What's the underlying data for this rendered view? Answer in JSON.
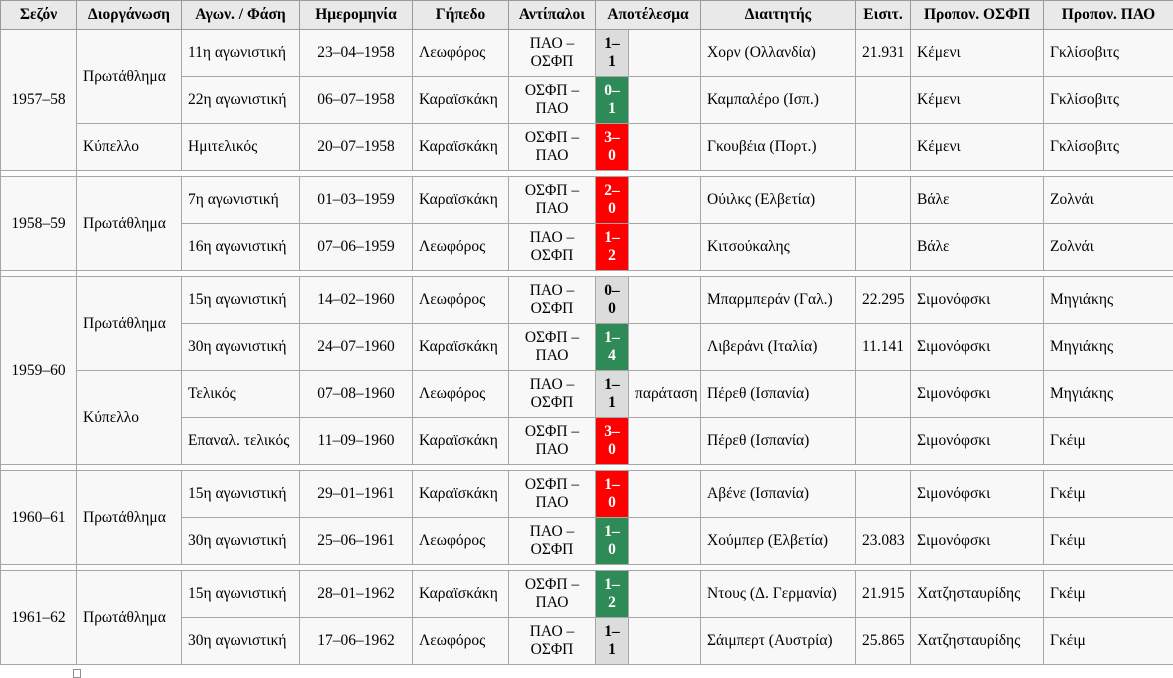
{
  "table": {
    "headers": [
      "Σεζόν",
      "Διοργάνωση",
      "Αγων. / Φάση",
      "Ημερομηνία",
      "Γήπεδο",
      "Αντίπαλοι",
      "Αποτέλεσμα",
      "Διαιτητής",
      "Εισιτ.",
      "Προπον. ΟΣΦΠ",
      "Προπον. ΠΑΟ"
    ],
    "result_colors": {
      "pao_win": "#2E8B57",
      "osfp_win": "#FF0000",
      "draw": "#DCDCDC"
    },
    "sections": [
      {
        "season": "1957–58",
        "competitions": [
          {
            "name": "Πρωτάθλημα",
            "matches": [
              {
                "phase": "11η αγωνιστική",
                "date": "23–04–1958",
                "stadium": "Λεωφόρος",
                "opponents": "ΠΑΟ – ΟΣΦΠ",
                "score": "1–1",
                "result": "draw",
                "note": "",
                "referee": "Χορν (Ολλανδία)",
                "tickets": "21.931",
                "coach_osfp": "Κέμενι",
                "coach_pao": "Γκλίσοβιτς"
              },
              {
                "phase": "22η αγωνιστική",
                "date": "06–07–1958",
                "stadium": "Καραϊσκάκη",
                "opponents": "ΟΣΦΠ – ΠΑΟ",
                "score": "0–1",
                "result": "pao_win",
                "note": "",
                "referee": "Καμπαλέρο (Ισπ.)",
                "tickets": "",
                "coach_osfp": "Κέμενι",
                "coach_pao": "Γκλίσοβιτς"
              }
            ]
          },
          {
            "name": "Κύπελλο",
            "matches": [
              {
                "phase": "Ημιτελικός",
                "date": "20–07–1958",
                "stadium": "Καραϊσκάκη",
                "opponents": "ΟΣΦΠ – ΠΑΟ",
                "score": "3–0",
                "result": "osfp_win",
                "note": "",
                "referee": "Γκουβέια (Πορτ.)",
                "tickets": "",
                "coach_osfp": "Κέμενι",
                "coach_pao": "Γκλίσοβιτς"
              }
            ]
          }
        ]
      },
      {
        "season": "1958–59",
        "competitions": [
          {
            "name": "Πρωτάθλημα",
            "matches": [
              {
                "phase": "7η αγωνιστική",
                "date": "01–03–1959",
                "stadium": "Καραϊσκάκη",
                "opponents": "ΟΣΦΠ – ΠΑΟ",
                "score": "2–0",
                "result": "osfp_win",
                "note": "",
                "referee": "Ούιλκς (Ελβετία)",
                "tickets": "",
                "coach_osfp": "Βάλε",
                "coach_pao": "Ζολνάι"
              },
              {
                "phase": "16η αγωνιστική",
                "date": "07–06–1959",
                "stadium": "Λεωφόρος",
                "opponents": "ΠΑΟ – ΟΣΦΠ",
                "score": "1–2",
                "result": "osfp_win",
                "note": "",
                "referee": "Κιτσούκαλης",
                "tickets": "",
                "coach_osfp": "Βάλε",
                "coach_pao": "Ζολνάι"
              }
            ]
          }
        ]
      },
      {
        "season": "1959–60",
        "competitions": [
          {
            "name": "Πρωτάθλημα",
            "matches": [
              {
                "phase": "15η αγωνιστική",
                "date": "14–02–1960",
                "stadium": "Λεωφόρος",
                "opponents": "ΠΑΟ – ΟΣΦΠ",
                "score": "0–0",
                "result": "draw",
                "note": "",
                "referee": "Μπαρμπεράν (Γαλ.)",
                "tickets": "22.295",
                "coach_osfp": "Σιμονόφσκι",
                "coach_pao": "Μηγιάκης"
              },
              {
                "phase": "30η αγωνιστική",
                "date": "24–07–1960",
                "stadium": "Καραϊσκάκη",
                "opponents": "ΟΣΦΠ – ΠΑΟ",
                "score": "1–4",
                "result": "pao_win",
                "note": "",
                "referee": "Λιβεράνι (Ιταλία)",
                "tickets": "11.141",
                "coach_osfp": "Σιμονόφσκι",
                "coach_pao": "Μηγιάκης"
              }
            ]
          },
          {
            "name": "Κύπελλο",
            "matches": [
              {
                "phase": "Τελικός",
                "date": "07–08–1960",
                "stadium": "Λεωφόρος",
                "opponents": "ΠΑΟ – ΟΣΦΠ",
                "score": "1–1",
                "result": "draw",
                "note": "παράταση",
                "referee": "Πέρεθ (Ισπανία)",
                "tickets": "",
                "coach_osfp": "Σιμονόφσκι",
                "coach_pao": "Μηγιάκης"
              },
              {
                "phase": "Επαναλ. τελικός",
                "date": "11–09–1960",
                "stadium": "Καραϊσκάκη",
                "opponents": "ΟΣΦΠ – ΠΑΟ",
                "score": "3–0",
                "result": "osfp_win",
                "note": "",
                "referee": "Πέρεθ (Ισπανία)",
                "tickets": "",
                "coach_osfp": "Σιμονόφσκι",
                "coach_pao": "Γκέιμ"
              }
            ]
          }
        ]
      },
      {
        "season": "1960–61",
        "competitions": [
          {
            "name": "Πρωτάθλημα",
            "matches": [
              {
                "phase": "15η αγωνιστική",
                "date": "29–01–1961",
                "stadium": "Καραϊσκάκη",
                "opponents": "ΟΣΦΠ – ΠΑΟ",
                "score": "1–0",
                "result": "osfp_win",
                "note": "",
                "referee": "Αβένε (Ισπανία)",
                "tickets": "",
                "coach_osfp": "Σιμονόφσκι",
                "coach_pao": "Γκέιμ"
              },
              {
                "phase": "30η αγωνιστική",
                "date": "25–06–1961",
                "stadium": "Λεωφόρος",
                "opponents": "ΠΑΟ – ΟΣΦΠ",
                "score": "1–0",
                "result": "pao_win",
                "note": "",
                "referee": "Χούμπερ (Ελβετία)",
                "tickets": "23.083",
                "coach_osfp": "Σιμονόφσκι",
                "coach_pao": "Γκέιμ"
              }
            ]
          }
        ]
      },
      {
        "season": "1961–62",
        "competitions": [
          {
            "name": "Πρωτάθλημα",
            "matches": [
              {
                "phase": "15η αγωνιστική",
                "date": "28–01–1962",
                "stadium": "Καραϊσκάκη",
                "opponents": "ΟΣΦΠ – ΠΑΟ",
                "score": "1–2",
                "result": "pao_win",
                "note": "",
                "referee": "Ντους (Δ. Γερμανία)",
                "tickets": "21.915",
                "coach_osfp": "Χατζησταυρίδης",
                "coach_pao": "Γκέιμ"
              },
              {
                "phase": "30η αγωνιστική",
                "date": "17–06–1962",
                "stadium": "Λεωφόρος",
                "opponents": "ΠΑΟ – ΟΣΦΠ",
                "score": "1–1",
                "result": "draw",
                "note": "",
                "referee": "Σάιμπερτ (Αυστρία)",
                "tickets": "25.865",
                "coach_osfp": "Χατζησταυρίδης",
                "coach_pao": "Γκέιμ"
              }
            ]
          }
        ]
      }
    ]
  }
}
